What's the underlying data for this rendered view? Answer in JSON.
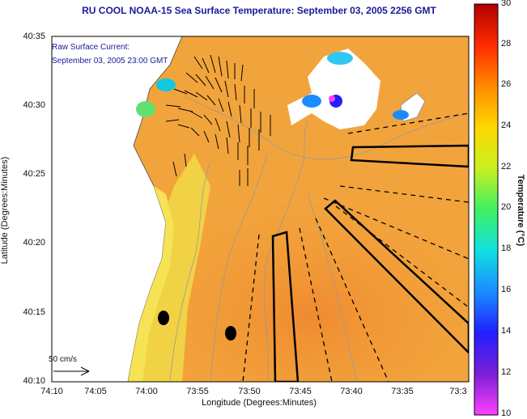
{
  "title": "RU COOL  NOAA-15  Sea Surface Temperature:  September 03, 2005 2256 GMT",
  "legend": {
    "line1": "Raw Surface Current:",
    "line2": "September 03, 2005 23:00 GMT"
  },
  "scale_label": "50 cm/s",
  "axes": {
    "xlabel": "Longitude (Degrees:Minutes)",
    "ylabel": "Latitude (Degrees:Minutes)",
    "xticks": [
      "74:10",
      "74:05",
      "74:00",
      "73:55",
      "73:50",
      "73:45",
      "73:40",
      "73:35",
      "73:3"
    ],
    "yticks": [
      "40:35",
      "40:30",
      "40:25",
      "40:20",
      "40:15",
      "40:10"
    ]
  },
  "colorbar": {
    "label": "Temperature (°C)",
    "ticks": [
      "30",
      "28",
      "26",
      "24",
      "22",
      "20",
      "18",
      "16",
      "14",
      "12",
      "10"
    ],
    "range": [
      10,
      30
    ]
  },
  "colors": {
    "land": "#ffffff",
    "coast_fill": "#f2e34a",
    "ocean_warm": "#f2a43c",
    "title": "#1a1a99"
  }
}
